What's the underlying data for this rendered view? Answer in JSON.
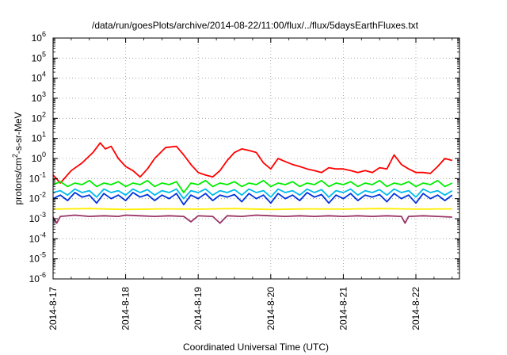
{
  "chart_data": {
    "type": "line",
    "title": "/data/run/goesPlots/archive/2014-08-22/11:00/flux/../flux/5daysEarthFluxes.txt",
    "xlabel": "Coordinated Universal Time (UTC)",
    "ylabel": "protons/cm²-s-sr-MeV",
    "ylabel_parts": [
      "protons/cm",
      "2",
      "-s-sr-MeV"
    ],
    "y_scale": "log",
    "ylim": [
      1e-06,
      1000000.0
    ],
    "y_ticks": [
      {
        "exp": "-6",
        "value": 1e-06
      },
      {
        "exp": "-5",
        "value": 1e-05
      },
      {
        "exp": "-4",
        "value": 0.0001
      },
      {
        "exp": "-3",
        "value": 0.001
      },
      {
        "exp": "-2",
        "value": 0.01
      },
      {
        "exp": "-1",
        "value": 0.1
      },
      {
        "exp": "0",
        "value": 1
      },
      {
        "exp": "1",
        "value": 10.0
      },
      {
        "exp": "2",
        "value": 100.0
      },
      {
        "exp": "3",
        "value": 1000.0
      },
      {
        "exp": "4",
        "value": 10000.0
      },
      {
        "exp": "5",
        "value": 100000.0
      },
      {
        "exp": "6",
        "value": 1000000.0
      }
    ],
    "tick_base": "10",
    "x_range_days": [
      "2014-08-17",
      "2014-08-22 12:00"
    ],
    "x_ticks": [
      "2014-8-17",
      "2014-8-18",
      "2014-8-19",
      "2014-8-20",
      "2014-8-21",
      "2014-8-22"
    ],
    "grid": true,
    "legend": "none",
    "series": [
      {
        "color": "#ff0000",
        "x": [
          0,
          0.1,
          0.25,
          0.4,
          0.55,
          0.65,
          0.72,
          0.8,
          0.9,
          1.0,
          1.1,
          1.2,
          1.3,
          1.4,
          1.55,
          1.7,
          1.8,
          1.9,
          2.0,
          2.1,
          2.2,
          2.3,
          2.4,
          2.5,
          2.6,
          2.7,
          2.8,
          2.9,
          3.0,
          3.1,
          3.2,
          3.3,
          3.4,
          3.5,
          3.6,
          3.7,
          3.8,
          3.9,
          4.0,
          4.1,
          4.2,
          4.3,
          4.4,
          4.5,
          4.6,
          4.7,
          4.8,
          4.9,
          5.0,
          5.1,
          5.2,
          5.3,
          5.4,
          5.5
        ],
        "values": [
          0.15,
          0.06,
          0.25,
          0.6,
          2.0,
          6.0,
          3.0,
          4.0,
          1.0,
          0.4,
          0.25,
          0.12,
          0.3,
          1.0,
          3.5,
          4.0,
          1.5,
          0.5,
          0.2,
          0.15,
          0.12,
          0.25,
          0.8,
          2.0,
          3.0,
          2.5,
          2.0,
          0.6,
          0.3,
          1.0,
          0.7,
          0.5,
          0.4,
          0.3,
          0.25,
          0.2,
          0.35,
          0.3,
          0.3,
          0.25,
          0.2,
          0.25,
          0.2,
          0.35,
          0.3,
          1.5,
          0.5,
          0.3,
          0.2,
          0.2,
          0.18,
          0.4,
          1.0,
          0.8
        ]
      },
      {
        "color": "#00ee00",
        "x": [
          0,
          0.1,
          0.2,
          0.3,
          0.4,
          0.5,
          0.6,
          0.7,
          0.8,
          0.9,
          1.0,
          1.1,
          1.2,
          1.3,
          1.4,
          1.5,
          1.6,
          1.7,
          1.8,
          1.9,
          2.0,
          2.1,
          2.2,
          2.3,
          2.4,
          2.5,
          2.6,
          2.7,
          2.8,
          2.9,
          3.0,
          3.1,
          3.2,
          3.3,
          3.4,
          3.5,
          3.6,
          3.7,
          3.8,
          3.9,
          4.0,
          4.1,
          4.2,
          4.3,
          4.4,
          4.5,
          4.6,
          4.7,
          4.8,
          4.9,
          5.0,
          5.1,
          5.2,
          5.3,
          5.4,
          5.5
        ],
        "values": [
          0.05,
          0.07,
          0.04,
          0.06,
          0.05,
          0.08,
          0.04,
          0.06,
          0.05,
          0.07,
          0.04,
          0.06,
          0.05,
          0.08,
          0.04,
          0.06,
          0.05,
          0.07,
          0.02,
          0.06,
          0.05,
          0.08,
          0.04,
          0.06,
          0.05,
          0.07,
          0.04,
          0.06,
          0.05,
          0.08,
          0.04,
          0.06,
          0.05,
          0.07,
          0.04,
          0.06,
          0.05,
          0.08,
          0.04,
          0.06,
          0.05,
          0.07,
          0.04,
          0.06,
          0.05,
          0.08,
          0.04,
          0.06,
          0.05,
          0.07,
          0.04,
          0.06,
          0.05,
          0.08,
          0.04,
          0.06
        ]
      },
      {
        "color": "#00bbee",
        "x": [
          0,
          0.1,
          0.2,
          0.3,
          0.4,
          0.5,
          0.6,
          0.7,
          0.8,
          0.9,
          1.0,
          1.1,
          1.2,
          1.3,
          1.4,
          1.5,
          1.6,
          1.7,
          1.8,
          1.9,
          2.0,
          2.1,
          2.2,
          2.3,
          2.4,
          2.5,
          2.6,
          2.7,
          2.8,
          2.9,
          3.0,
          3.1,
          3.2,
          3.3,
          3.4,
          3.5,
          3.6,
          3.7,
          3.8,
          3.9,
          4.0,
          4.1,
          4.2,
          4.3,
          4.4,
          4.5,
          4.6,
          4.7,
          4.8,
          4.9,
          5.0,
          5.1,
          5.2,
          5.3,
          5.4,
          5.5
        ],
        "values": [
          0.02,
          0.025,
          0.015,
          0.03,
          0.02,
          0.025,
          0.012,
          0.03,
          0.02,
          0.025,
          0.015,
          0.03,
          0.02,
          0.028,
          0.015,
          0.025,
          0.02,
          0.03,
          0.01,
          0.025,
          0.02,
          0.03,
          0.015,
          0.025,
          0.02,
          0.028,
          0.015,
          0.03,
          0.02,
          0.025,
          0.012,
          0.03,
          0.02,
          0.025,
          0.015,
          0.03,
          0.02,
          0.028,
          0.012,
          0.025,
          0.02,
          0.03,
          0.015,
          0.025,
          0.02,
          0.028,
          0.015,
          0.03,
          0.02,
          0.025,
          0.012,
          0.03,
          0.02,
          0.025,
          0.015,
          0.025
        ]
      },
      {
        "color": "#0033dd",
        "x": [
          0,
          0.1,
          0.2,
          0.3,
          0.4,
          0.5,
          0.6,
          0.7,
          0.8,
          0.9,
          1.0,
          1.1,
          1.2,
          1.3,
          1.4,
          1.5,
          1.6,
          1.7,
          1.8,
          1.9,
          2.0,
          2.1,
          2.2,
          2.3,
          2.4,
          2.5,
          2.6,
          2.7,
          2.8,
          2.9,
          3.0,
          3.1,
          3.2,
          3.3,
          3.4,
          3.5,
          3.6,
          3.7,
          3.8,
          3.9,
          4.0,
          4.1,
          4.2,
          4.3,
          4.4,
          4.5,
          4.6,
          4.7,
          4.8,
          4.9,
          5.0,
          5.1,
          5.2,
          5.3,
          5.4,
          5.5
        ],
        "values": [
          0.01,
          0.015,
          0.008,
          0.02,
          0.012,
          0.015,
          0.006,
          0.018,
          0.01,
          0.015,
          0.008,
          0.02,
          0.012,
          0.016,
          0.008,
          0.015,
          0.01,
          0.018,
          0.005,
          0.015,
          0.01,
          0.018,
          0.008,
          0.015,
          0.012,
          0.016,
          0.007,
          0.018,
          0.01,
          0.015,
          0.006,
          0.018,
          0.01,
          0.015,
          0.008,
          0.02,
          0.012,
          0.016,
          0.006,
          0.015,
          0.01,
          0.018,
          0.008,
          0.015,
          0.012,
          0.016,
          0.007,
          0.018,
          0.01,
          0.015,
          0.006,
          0.018,
          0.01,
          0.015,
          0.008,
          0.015
        ]
      },
      {
        "color": "#ffee00",
        "x": [
          0,
          0.5,
          1.0,
          1.5,
          2.0,
          2.5,
          3.0,
          3.5,
          4.0,
          4.5,
          5.0,
          5.5
        ],
        "values": [
          0.003,
          0.0032,
          0.0029,
          0.0031,
          0.003,
          0.0032,
          0.0029,
          0.0031,
          0.003,
          0.0032,
          0.003,
          0.0031
        ]
      },
      {
        "color": "#993366",
        "x": [
          0,
          0.05,
          0.1,
          0.3,
          0.5,
          0.7,
          0.9,
          1.0,
          1.2,
          1.4,
          1.6,
          1.8,
          1.9,
          2.0,
          2.2,
          2.3,
          2.4,
          2.6,
          2.8,
          3.0,
          3.2,
          3.4,
          3.6,
          3.8,
          4.0,
          4.2,
          4.4,
          4.6,
          4.8,
          4.85,
          4.9,
          5.1,
          5.3,
          5.5
        ],
        "values": [
          0.0012,
          0.0006,
          0.0013,
          0.0015,
          0.0013,
          0.0014,
          0.0013,
          0.0015,
          0.0014,
          0.0013,
          0.0014,
          0.0013,
          0.0007,
          0.0014,
          0.0013,
          0.0006,
          0.0014,
          0.0013,
          0.0015,
          0.0014,
          0.0013,
          0.0014,
          0.0013,
          0.0014,
          0.0013,
          0.0014,
          0.0013,
          0.0014,
          0.0013,
          0.0006,
          0.0013,
          0.0014,
          0.0013,
          0.0012
        ]
      }
    ]
  }
}
